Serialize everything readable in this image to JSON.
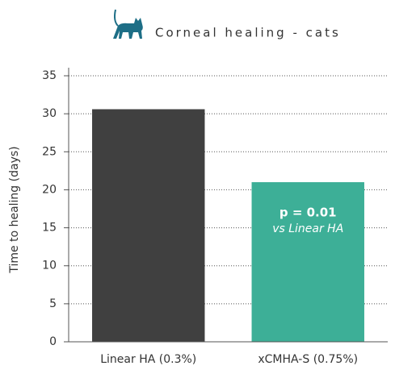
{
  "chart_data": {
    "type": "bar",
    "title": "Corneal healing - cats",
    "ylabel": "Time to healing (days)",
    "categories": [
      "Linear HA (0.3%)",
      "xCMHA-S (0.75%)"
    ],
    "values": [
      30.6,
      21
    ],
    "colors": [
      "#404040",
      "#3daf97"
    ],
    "ylim": [
      0,
      35
    ],
    "yticks": [
      0,
      5,
      10,
      15,
      20,
      25,
      30,
      35
    ],
    "grid": true,
    "annotations": [
      "p = 0.01",
      "vs Linear HA"
    ]
  }
}
